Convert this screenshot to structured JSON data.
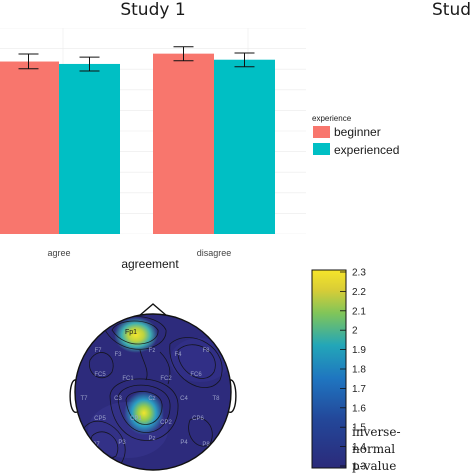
{
  "chart_data": [
    {
      "type": "bar",
      "title": "Study 1",
      "xlabel": "agreement",
      "ylabel": "",
      "categories": [
        "agree",
        "disagree"
      ],
      "legend": {
        "title": "experience",
        "placement": "right"
      },
      "series": [
        {
          "name": "beginner",
          "color": "#F8766D",
          "values": [
            0.854,
            0.893
          ],
          "err_low": [
            0.818,
            0.858
          ],
          "err_high": [
            0.891,
            0.927
          ]
        },
        {
          "name": "experienced",
          "color": "#00BFC4",
          "values": [
            0.842,
            0.863
          ],
          "err_low": [
            0.807,
            0.828
          ],
          "err_high": [
            0.876,
            0.896
          ]
        }
      ],
      "ylim": [
        0,
        1
      ],
      "grid": true
    },
    {
      "type": "heatmap",
      "title": "",
      "colorbar": {
        "ticks": [
          2.3,
          2.2,
          2.1,
          2,
          1.9,
          1.8,
          1.7,
          1.6,
          1.5,
          1.4,
          1.3
        ],
        "range": [
          1.3,
          2.3
        ],
        "label_lines": [
          "inverse-",
          "normal",
          "p-value"
        ]
      },
      "electrodes": [
        "Fp1",
        "F7",
        "F3",
        "Fz",
        "F4",
        "F8",
        "FC5",
        "FC1",
        "FC2",
        "FC6",
        "T7",
        "C3",
        "Cz",
        "C4",
        "T8",
        "CP5",
        "CP1",
        "CP2",
        "CP6",
        "P7",
        "P3",
        "Pz",
        "P4",
        "P8"
      ]
    }
  ],
  "neighbor_title": "Stud"
}
